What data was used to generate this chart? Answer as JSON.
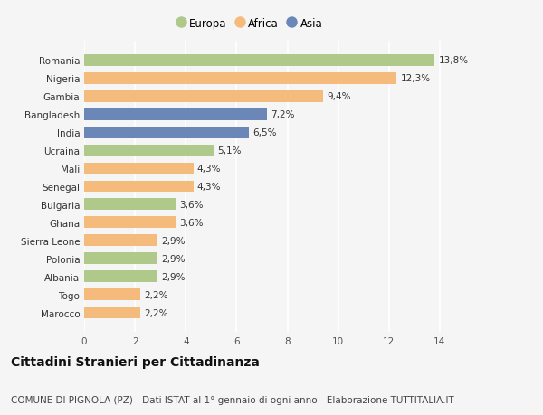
{
  "categories": [
    "Romania",
    "Nigeria",
    "Gambia",
    "Bangladesh",
    "India",
    "Ucraina",
    "Mali",
    "Senegal",
    "Bulgaria",
    "Ghana",
    "Sierra Leone",
    "Polonia",
    "Albania",
    "Togo",
    "Marocco"
  ],
  "values": [
    13.8,
    12.3,
    9.4,
    7.2,
    6.5,
    5.1,
    4.3,
    4.3,
    3.6,
    3.6,
    2.9,
    2.9,
    2.9,
    2.2,
    2.2
  ],
  "labels": [
    "13,8%",
    "12,3%",
    "9,4%",
    "7,2%",
    "6,5%",
    "5,1%",
    "4,3%",
    "4,3%",
    "3,6%",
    "3,6%",
    "2,9%",
    "2,9%",
    "2,9%",
    "2,2%",
    "2,2%"
  ],
  "continents": [
    "Europa",
    "Africa",
    "Africa",
    "Asia",
    "Asia",
    "Europa",
    "Africa",
    "Africa",
    "Europa",
    "Africa",
    "Africa",
    "Europa",
    "Europa",
    "Africa",
    "Africa"
  ],
  "colors": {
    "Europa": "#aec98a",
    "Africa": "#f5bb7d",
    "Asia": "#6a87b8"
  },
  "xlim": [
    0,
    15.5
  ],
  "xticks": [
    0,
    2,
    4,
    6,
    8,
    10,
    12,
    14
  ],
  "background_color": "#f5f5f5",
  "grid_color": "#ffffff",
  "bar_height": 0.65,
  "title": "Cittadini Stranieri per Cittadinanza",
  "subtitle": "COMUNE DI PIGNOLA (PZ) - Dati ISTAT al 1° gennaio di ogni anno - Elaborazione TUTTITALIA.IT",
  "title_fontsize": 10,
  "subtitle_fontsize": 7.5,
  "label_fontsize": 7.5,
  "tick_fontsize": 7.5,
  "legend_fontsize": 8.5
}
